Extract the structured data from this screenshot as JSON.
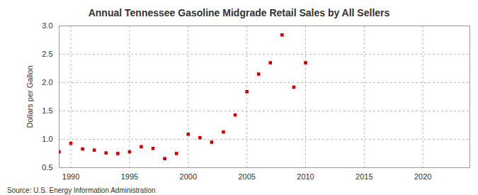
{
  "chart_data": {
    "type": "scatter",
    "title": "Annual Tennessee Gasoline Midgrade Retail Sales by All Sellers",
    "y_label": "Dollars per Gallon",
    "source": "Source: U.S. Energy Information Administration",
    "x": [
      1989,
      1990,
      1991,
      1992,
      1993,
      1994,
      1995,
      1996,
      1997,
      1998,
      1999,
      2000,
      2001,
      2002,
      2003,
      2004,
      2005,
      2006,
      2007,
      2008,
      2009,
      2010
    ],
    "values": [
      0.78,
      0.93,
      0.83,
      0.81,
      0.76,
      0.75,
      0.78,
      0.87,
      0.84,
      0.66,
      0.75,
      1.09,
      1.03,
      0.95,
      1.13,
      1.43,
      1.84,
      2.15,
      2.35,
      2.84,
      1.92,
      2.35
    ],
    "color": "#cc0000",
    "marker": "square",
    "grid": true,
    "xlim": [
      1989,
      2024
    ],
    "xticks": [
      1990,
      1995,
      2000,
      2005,
      2010,
      2015,
      2020
    ],
    "ylim": [
      0.5,
      3.0
    ],
    "yticks": [
      0.5,
      {
        "value": 1,
        "label": "1.0"
      },
      1.5,
      {
        "value": 2,
        "label": "2.0"
      },
      2.5,
      {
        "value": 3,
        "label": "3.0"
      }
    ]
  }
}
